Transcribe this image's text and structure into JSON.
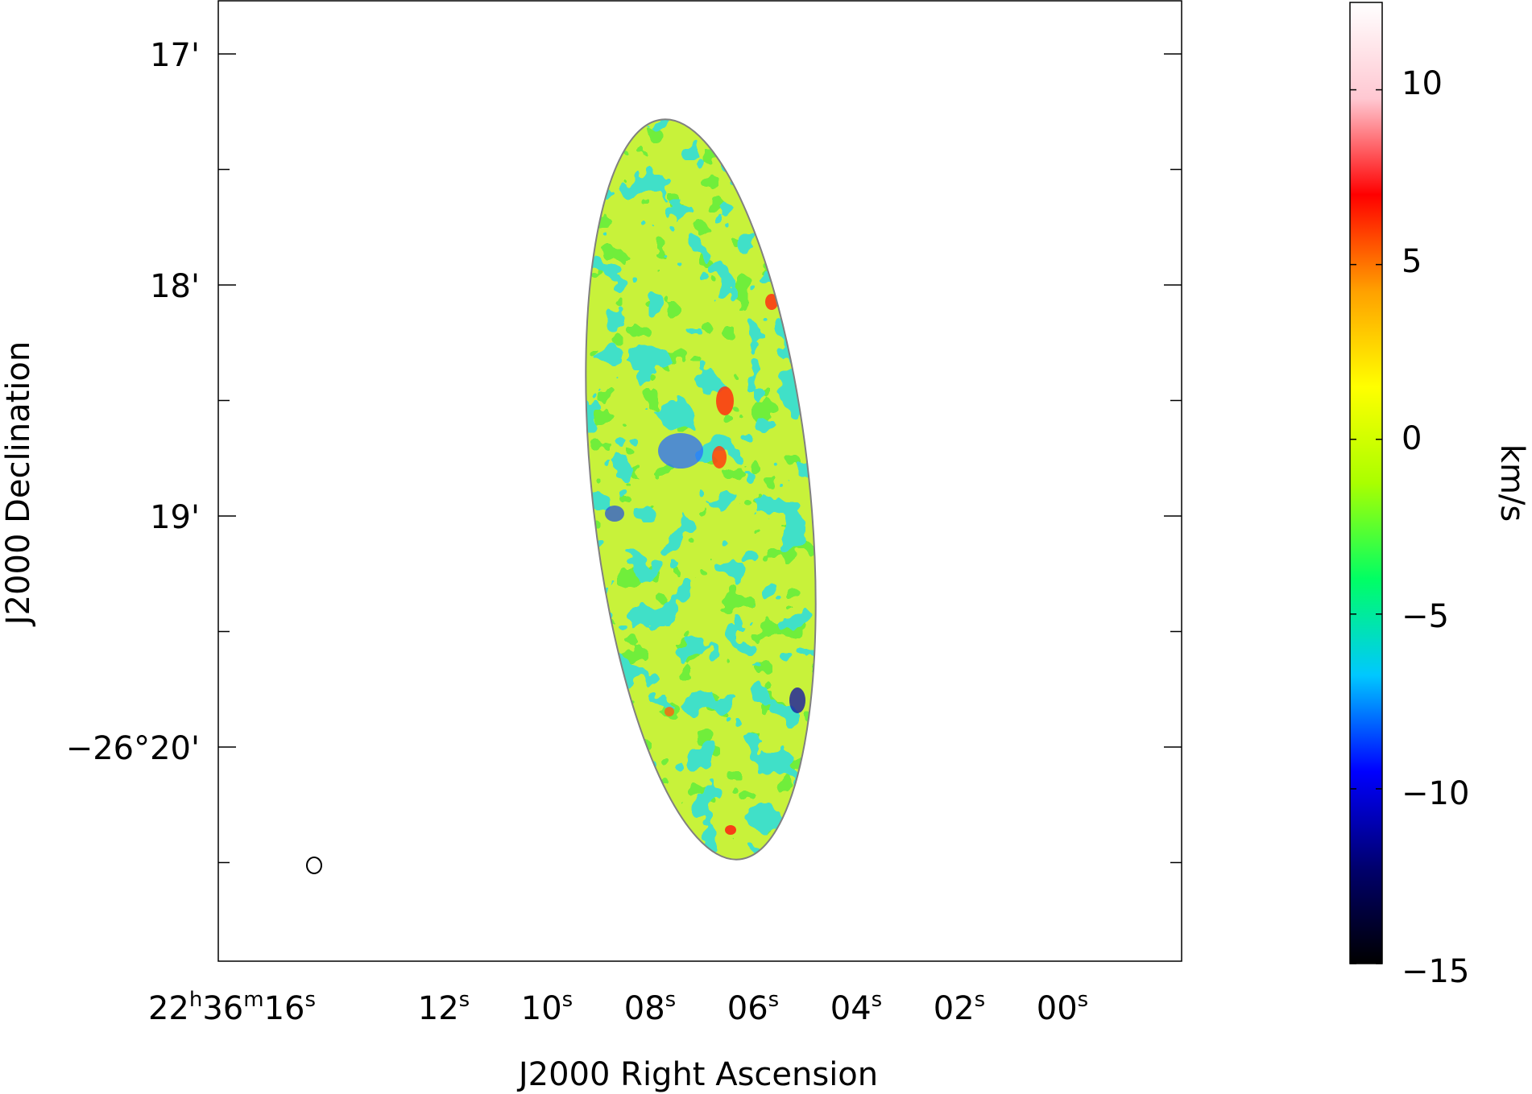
{
  "chart_data": {
    "type": "heatmap",
    "title": "",
    "xlabel": "J2000 Right Ascension",
    "ylabel": "J2000 Declination",
    "x_ticks": [
      {
        "h": "22",
        "m": "36",
        "s": "16",
        "sec": 16
      },
      {
        "s": "12",
        "sec": 12
      },
      {
        "s": "10",
        "sec": 10
      },
      {
        "s": "08",
        "sec": 8
      },
      {
        "s": "06",
        "sec": 6
      },
      {
        "s": "04",
        "sec": 4
      },
      {
        "s": "02",
        "sec": 2
      },
      {
        "s": "00",
        "sec": 0
      }
    ],
    "x_unit_sup": {
      "h": "h",
      "m": "m",
      "s": "s"
    },
    "y_ticks": [
      {
        "label": "17'",
        "arcmin": 17
      },
      {
        "label": "18'",
        "arcmin": 18
      },
      {
        "label": "19'",
        "arcmin": 19
      },
      {
        "label": "−26°20'",
        "arcmin": 20
      }
    ],
    "colorbar": {
      "label": "km/s",
      "ticks": [
        "10",
        "5",
        "0",
        "−5",
        "−10",
        "−15"
      ],
      "tick_values": [
        10,
        5,
        0,
        -5,
        -10,
        -15
      ],
      "vmin": -15,
      "vmax": 12.5,
      "colors": [
        "#000000",
        "#00006e",
        "#0000ff",
        "#00c8ff",
        "#00ff64",
        "#aaff00",
        "#ffff00",
        "#ffa000",
        "#ff0000",
        "#ffc8d2",
        "#ffffff"
      ]
    },
    "contour_color": "#808080",
    "beam_marker": "ellipse"
  }
}
